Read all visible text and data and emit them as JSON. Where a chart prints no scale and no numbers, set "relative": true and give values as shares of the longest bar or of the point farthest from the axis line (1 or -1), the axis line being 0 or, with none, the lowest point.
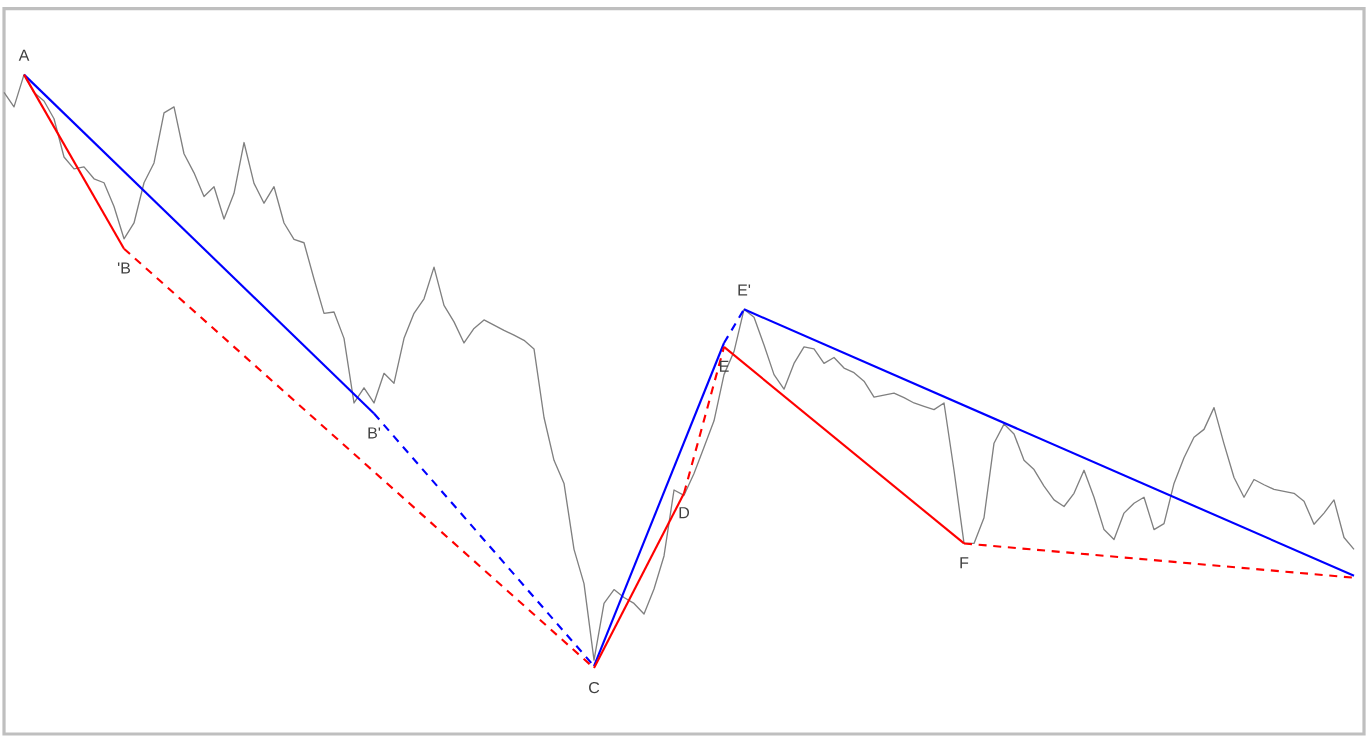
{
  "chart_data": {
    "type": "line",
    "relative": true,
    "marker": "none",
    "categories": [
      null,
      null,
      null,
      null,
      null,
      null,
      null,
      null,
      null,
      null,
      null,
      null,
      null,
      null,
      null,
      null,
      null,
      null,
      null,
      null,
      null,
      null,
      null,
      null,
      null,
      null,
      null,
      null,
      null,
      null,
      null,
      null,
      null,
      null,
      null,
      null,
      null,
      null,
      null,
      null,
      null,
      null,
      null,
      null,
      null,
      null,
      null,
      null,
      null,
      null,
      null,
      null,
      null,
      null,
      null,
      null,
      null,
      null,
      null,
      null,
      null,
      null,
      null,
      null,
      null,
      null,
      null,
      null,
      null,
      null,
      null,
      null,
      null,
      null,
      null,
      null,
      null,
      null,
      null,
      null,
      null,
      null,
      null,
      null,
      null,
      null,
      null,
      null,
      null,
      null,
      null,
      null,
      null,
      null,
      null,
      null,
      null,
      null,
      null,
      null,
      null,
      null,
      null,
      null,
      null,
      null,
      null,
      null,
      null,
      null,
      null,
      null,
      null,
      null,
      null,
      null,
      null,
      null,
      null,
      null,
      null,
      null,
      null,
      null,
      null,
      null,
      null,
      null,
      null,
      null,
      null,
      null,
      null,
      null,
      null,
      null
    ],
    "series": [
      {
        "color": "#808080",
        "line_style": "solid",
        "values": [
          0.973,
          0.951,
          1.0,
          0.973,
          0.96,
          0.933,
          0.875,
          0.857,
          0.86,
          0.842,
          0.836,
          0.8,
          0.751,
          0.775,
          0.836,
          0.866,
          0.942,
          0.951,
          0.88,
          0.851,
          0.815,
          0.83,
          0.781,
          0.82,
          0.897,
          0.835,
          0.805,
          0.83,
          0.775,
          0.75,
          0.745,
          0.69,
          0.638,
          0.64,
          0.6,
          0.502,
          0.525,
          0.502,
          0.547,
          0.532,
          0.6,
          0.638,
          0.66,
          0.708,
          0.65,
          0.625,
          0.593,
          0.615,
          0.628,
          0.62,
          0.612,
          0.605,
          0.597,
          0.584,
          0.48,
          0.415,
          0.38,
          0.28,
          0.228,
          0.112,
          0.198,
          0.219,
          0.207,
          0.198,
          0.182,
          0.22,
          0.27,
          0.37,
          0.362,
          0.395,
          0.435,
          0.475,
          0.545,
          0.58,
          0.644,
          0.632,
          0.59,
          0.545,
          0.523,
          0.562,
          0.587,
          0.584,
          0.562,
          0.571,
          0.555,
          0.548,
          0.535,
          0.511,
          0.514,
          0.517,
          0.51,
          0.502,
          0.497,
          0.492,
          0.502,
          0.4,
          0.289,
          0.289,
          0.328,
          0.441,
          0.47,
          0.455,
          0.415,
          0.401,
          0.376,
          0.355,
          0.345,
          0.365,
          0.4,
          0.359,
          0.31,
          0.295,
          0.335,
          0.35,
          0.359,
          0.31,
          0.319,
          0.38,
          0.419,
          0.45,
          0.462,
          0.495,
          0.44,
          0.389,
          0.359,
          0.386,
          0.378,
          0.371,
          0.368,
          0.365,
          0.353,
          0.318,
          0.335,
          0.355,
          0.298,
          0.28
        ]
      },
      {
        "color": "#0000ff",
        "line_style": "solid",
        "values": [
          null,
          null,
          1.0,
          null,
          null,
          null,
          null,
          null,
          null,
          null,
          null,
          null,
          null,
          null,
          null,
          null,
          null,
          null,
          null,
          null,
          null,
          null,
          null,
          null,
          null,
          null,
          null,
          null,
          null,
          null,
          null,
          null,
          null,
          null,
          null,
          null,
          null,
          0.486,
          null,
          null,
          null,
          null,
          null,
          null,
          null,
          null,
          null,
          null,
          null,
          null,
          null,
          null,
          null,
          null,
          null,
          null,
          null,
          null,
          null,
          null,
          null,
          null,
          null,
          null,
          null,
          null,
          null,
          null,
          null,
          null,
          null,
          null,
          null,
          null,
          null,
          null,
          null,
          null,
          null,
          null,
          null,
          null,
          null,
          null,
          null,
          null,
          null,
          null,
          null,
          null,
          null,
          null,
          null,
          null,
          null,
          null,
          null,
          null,
          null,
          null,
          null,
          null,
          null,
          null,
          null,
          null,
          null,
          null,
          null,
          null,
          null,
          null,
          null,
          null,
          null,
          null,
          null,
          null,
          null,
          null,
          null,
          null,
          null,
          null,
          null,
          null,
          null,
          null,
          null,
          null,
          null,
          null,
          null,
          null,
          null,
          null
        ]
      },
      {
        "color": "#0000ff",
        "line_style": "dashed",
        "values": [
          null,
          null,
          null,
          null,
          null,
          null,
          null,
          null,
          null,
          null,
          null,
          null,
          null,
          null,
          null,
          null,
          null,
          null,
          null,
          null,
          null,
          null,
          null,
          null,
          null,
          null,
          null,
          null,
          null,
          null,
          null,
          null,
          null,
          null,
          null,
          null,
          null,
          0.486,
          null,
          null,
          null,
          null,
          null,
          null,
          null,
          null,
          null,
          null,
          null,
          null,
          null,
          null,
          null,
          null,
          null,
          null,
          null,
          null,
          null,
          0.103,
          null,
          null,
          null,
          null,
          null,
          null,
          null,
          null,
          null,
          null,
          null,
          null,
          null,
          null,
          null,
          null,
          null,
          null,
          null,
          null,
          null,
          null,
          null,
          null,
          null,
          null,
          null,
          null,
          null,
          null,
          null,
          null,
          null,
          null,
          null,
          null,
          null,
          null,
          null,
          null,
          null,
          null,
          null,
          null,
          null,
          null,
          null,
          null,
          null,
          null,
          null,
          null,
          null,
          null,
          null,
          null,
          null,
          null,
          null,
          null,
          null,
          null,
          null,
          null,
          null,
          null,
          null,
          null,
          null,
          null,
          null,
          null,
          null,
          null,
          null,
          null
        ]
      },
      {
        "color": "#0000ff",
        "line_style": "solid",
        "values": [
          null,
          null,
          null,
          null,
          null,
          null,
          null,
          null,
          null,
          null,
          null,
          null,
          null,
          null,
          null,
          null,
          null,
          null,
          null,
          null,
          null,
          null,
          null,
          null,
          null,
          null,
          null,
          null,
          null,
          null,
          null,
          null,
          null,
          null,
          null,
          null,
          null,
          null,
          null,
          null,
          null,
          null,
          null,
          null,
          null,
          null,
          null,
          null,
          null,
          null,
          null,
          null,
          null,
          null,
          null,
          null,
          null,
          null,
          null,
          0.103,
          null,
          null,
          null,
          null,
          null,
          null,
          null,
          null,
          null,
          null,
          null,
          null,
          0.593,
          null,
          null,
          null,
          null,
          null,
          null,
          null,
          null,
          null,
          null,
          null,
          null,
          null,
          null,
          null,
          null,
          null,
          null,
          null,
          null,
          null,
          null,
          null,
          null,
          null,
          null,
          null,
          null,
          null,
          null,
          null,
          null,
          null,
          null,
          null,
          null,
          null,
          null,
          null,
          null,
          null,
          null,
          null,
          null,
          null,
          null,
          null,
          null,
          null,
          null,
          null,
          null,
          null,
          null,
          null,
          null,
          null,
          null,
          null,
          null,
          null,
          null,
          null
        ]
      },
      {
        "color": "#0000ff",
        "line_style": "dashed",
        "values": [
          null,
          null,
          null,
          null,
          null,
          null,
          null,
          null,
          null,
          null,
          null,
          null,
          null,
          null,
          null,
          null,
          null,
          null,
          null,
          null,
          null,
          null,
          null,
          null,
          null,
          null,
          null,
          null,
          null,
          null,
          null,
          null,
          null,
          null,
          null,
          null,
          null,
          null,
          null,
          null,
          null,
          null,
          null,
          null,
          null,
          null,
          null,
          null,
          null,
          null,
          null,
          null,
          null,
          null,
          null,
          null,
          null,
          null,
          null,
          null,
          null,
          null,
          null,
          null,
          null,
          null,
          null,
          null,
          null,
          null,
          null,
          null,
          0.593,
          null,
          0.644,
          null,
          null,
          null,
          null,
          null,
          null,
          null,
          null,
          null,
          null,
          null,
          null,
          null,
          null,
          null,
          null,
          null,
          null,
          null,
          null,
          null,
          null,
          null,
          null,
          null,
          null,
          null,
          null,
          null,
          null,
          null,
          null,
          null,
          null,
          null,
          null,
          null,
          null,
          null,
          null,
          null,
          null,
          null,
          null,
          null,
          null,
          null,
          null,
          null,
          null,
          null,
          null,
          null,
          null,
          null,
          null,
          null,
          null,
          null,
          null,
          null
        ]
      },
      {
        "color": "#0000ff",
        "line_style": "solid",
        "values": [
          null,
          null,
          null,
          null,
          null,
          null,
          null,
          null,
          null,
          null,
          null,
          null,
          null,
          null,
          null,
          null,
          null,
          null,
          null,
          null,
          null,
          null,
          null,
          null,
          null,
          null,
          null,
          null,
          null,
          null,
          null,
          null,
          null,
          null,
          null,
          null,
          null,
          null,
          null,
          null,
          null,
          null,
          null,
          null,
          null,
          null,
          null,
          null,
          null,
          null,
          null,
          null,
          null,
          null,
          null,
          null,
          null,
          null,
          null,
          null,
          null,
          null,
          null,
          null,
          null,
          null,
          null,
          null,
          null,
          null,
          null,
          null,
          null,
          null,
          0.644,
          null,
          null,
          null,
          null,
          null,
          null,
          null,
          null,
          null,
          null,
          null,
          null,
          null,
          null,
          null,
          null,
          null,
          null,
          null,
          null,
          null,
          null,
          null,
          null,
          null,
          null,
          null,
          null,
          null,
          null,
          null,
          null,
          null,
          null,
          null,
          null,
          null,
          null,
          null,
          null,
          null,
          null,
          null,
          null,
          null,
          null,
          null,
          null,
          null,
          null,
          null,
          null,
          null,
          null,
          null,
          null,
          null,
          null,
          null,
          null,
          0.24
        ]
      },
      {
        "color": "#ff0000",
        "line_style": "solid",
        "values": [
          null,
          null,
          1.0,
          null,
          null,
          null,
          null,
          null,
          null,
          null,
          null,
          null,
          0.736,
          null,
          null,
          null,
          null,
          null,
          null,
          null,
          null,
          null,
          null,
          null,
          null,
          null,
          null,
          null,
          null,
          null,
          null,
          null,
          null,
          null,
          null,
          null,
          null,
          null,
          null,
          null,
          null,
          null,
          null,
          null,
          null,
          null,
          null,
          null,
          null,
          null,
          null,
          null,
          null,
          null,
          null,
          null,
          null,
          null,
          null,
          null,
          null,
          null,
          null,
          null,
          null,
          null,
          null,
          null,
          null,
          null,
          null,
          null,
          null,
          null,
          null,
          null,
          null,
          null,
          null,
          null,
          null,
          null,
          null,
          null,
          null,
          null,
          null,
          null,
          null,
          null,
          null,
          null,
          null,
          null,
          null,
          null,
          null,
          null,
          null,
          null,
          null,
          null,
          null,
          null,
          null,
          null,
          null,
          null,
          null,
          null,
          null,
          null,
          null,
          null,
          null,
          null,
          null,
          null,
          null,
          null,
          null,
          null,
          null,
          null,
          null,
          null,
          null,
          null,
          null,
          null,
          null,
          null,
          null,
          null,
          null,
          null
        ]
      },
      {
        "color": "#ff0000",
        "line_style": "dashed",
        "values": [
          null,
          null,
          null,
          null,
          null,
          null,
          null,
          null,
          null,
          null,
          null,
          null,
          0.736,
          null,
          null,
          null,
          null,
          null,
          null,
          null,
          null,
          null,
          null,
          null,
          null,
          null,
          null,
          null,
          null,
          null,
          null,
          null,
          null,
          null,
          null,
          null,
          null,
          null,
          null,
          null,
          null,
          null,
          null,
          null,
          null,
          null,
          null,
          null,
          null,
          null,
          null,
          null,
          null,
          null,
          null,
          null,
          null,
          null,
          null,
          0.1,
          null,
          null,
          null,
          null,
          null,
          null,
          null,
          null,
          null,
          null,
          null,
          null,
          null,
          null,
          null,
          null,
          null,
          null,
          null,
          null,
          null,
          null,
          null,
          null,
          null,
          null,
          null,
          null,
          null,
          null,
          null,
          null,
          null,
          null,
          null,
          null,
          null,
          null,
          null,
          null,
          null,
          null,
          null,
          null,
          null,
          null,
          null,
          null,
          null,
          null,
          null,
          null,
          null,
          null,
          null,
          null,
          null,
          null,
          null,
          null,
          null,
          null,
          null,
          null,
          null,
          null,
          null,
          null,
          null,
          null,
          null,
          null,
          null,
          null,
          null,
          null
        ]
      },
      {
        "color": "#ff0000",
        "line_style": "solid",
        "values": [
          null,
          null,
          null,
          null,
          null,
          null,
          null,
          null,
          null,
          null,
          null,
          null,
          null,
          null,
          null,
          null,
          null,
          null,
          null,
          null,
          null,
          null,
          null,
          null,
          null,
          null,
          null,
          null,
          null,
          null,
          null,
          null,
          null,
          null,
          null,
          null,
          null,
          null,
          null,
          null,
          null,
          null,
          null,
          null,
          null,
          null,
          null,
          null,
          null,
          null,
          null,
          null,
          null,
          null,
          null,
          null,
          null,
          null,
          null,
          0.1,
          null,
          null,
          null,
          null,
          null,
          null,
          null,
          null,
          0.365,
          null,
          null,
          null,
          null,
          null,
          null,
          null,
          null,
          null,
          null,
          null,
          null,
          null,
          null,
          null,
          null,
          null,
          null,
          null,
          null,
          null,
          null,
          null,
          null,
          null,
          null,
          null,
          null,
          null,
          null,
          null,
          null,
          null,
          null,
          null,
          null,
          null,
          null,
          null,
          null,
          null,
          null,
          null,
          null,
          null,
          null,
          null,
          null,
          null,
          null,
          null,
          null,
          null,
          null,
          null,
          null,
          null,
          null,
          null,
          null,
          null,
          null,
          null,
          null,
          null,
          null,
          null
        ]
      },
      {
        "color": "#ff0000",
        "line_style": "dashed",
        "values": [
          null,
          null,
          null,
          null,
          null,
          null,
          null,
          null,
          null,
          null,
          null,
          null,
          null,
          null,
          null,
          null,
          null,
          null,
          null,
          null,
          null,
          null,
          null,
          null,
          null,
          null,
          null,
          null,
          null,
          null,
          null,
          null,
          null,
          null,
          null,
          null,
          null,
          null,
          null,
          null,
          null,
          null,
          null,
          null,
          null,
          null,
          null,
          null,
          null,
          null,
          null,
          null,
          null,
          null,
          null,
          null,
          null,
          null,
          null,
          null,
          null,
          null,
          null,
          null,
          null,
          null,
          null,
          null,
          0.365,
          null,
          null,
          null,
          0.587,
          null,
          null,
          null,
          null,
          null,
          null,
          null,
          null,
          null,
          null,
          null,
          null,
          null,
          null,
          null,
          null,
          null,
          null,
          null,
          null,
          null,
          null,
          null,
          null,
          null,
          null,
          null,
          null,
          null,
          null,
          null,
          null,
          null,
          null,
          null,
          null,
          null,
          null,
          null,
          null,
          null,
          null,
          null,
          null,
          null,
          null,
          null,
          null,
          null,
          null,
          null,
          null,
          null,
          null,
          null,
          null,
          null,
          null,
          null,
          null,
          null,
          null,
          null
        ]
      },
      {
        "color": "#ff0000",
        "line_style": "solid",
        "values": [
          null,
          null,
          null,
          null,
          null,
          null,
          null,
          null,
          null,
          null,
          null,
          null,
          null,
          null,
          null,
          null,
          null,
          null,
          null,
          null,
          null,
          null,
          null,
          null,
          null,
          null,
          null,
          null,
          null,
          null,
          null,
          null,
          null,
          null,
          null,
          null,
          null,
          null,
          null,
          null,
          null,
          null,
          null,
          null,
          null,
          null,
          null,
          null,
          null,
          null,
          null,
          null,
          null,
          null,
          null,
          null,
          null,
          null,
          null,
          null,
          null,
          null,
          null,
          null,
          null,
          null,
          null,
          null,
          null,
          null,
          null,
          null,
          0.587,
          null,
          null,
          null,
          null,
          null,
          null,
          null,
          null,
          null,
          null,
          null,
          null,
          null,
          null,
          null,
          null,
          null,
          null,
          null,
          null,
          null,
          null,
          null,
          0.289,
          null,
          null,
          null,
          null,
          null,
          null,
          null,
          null,
          null,
          null,
          null,
          null,
          null,
          null,
          null,
          null,
          null,
          null,
          null,
          null,
          null,
          null,
          null,
          null,
          null,
          null,
          null,
          null,
          null,
          null,
          null,
          null,
          null,
          null,
          null,
          null,
          null,
          null,
          null
        ]
      },
      {
        "color": "#ff0000",
        "line_style": "dashed",
        "values": [
          null,
          null,
          null,
          null,
          null,
          null,
          null,
          null,
          null,
          null,
          null,
          null,
          null,
          null,
          null,
          null,
          null,
          null,
          null,
          null,
          null,
          null,
          null,
          null,
          null,
          null,
          null,
          null,
          null,
          null,
          null,
          null,
          null,
          null,
          null,
          null,
          null,
          null,
          null,
          null,
          null,
          null,
          null,
          null,
          null,
          null,
          null,
          null,
          null,
          null,
          null,
          null,
          null,
          null,
          null,
          null,
          null,
          null,
          null,
          null,
          null,
          null,
          null,
          null,
          null,
          null,
          null,
          null,
          null,
          null,
          null,
          null,
          null,
          null,
          null,
          null,
          null,
          null,
          null,
          null,
          null,
          null,
          null,
          null,
          null,
          null,
          null,
          null,
          null,
          null,
          null,
          null,
          null,
          null,
          null,
          null,
          0.289,
          null,
          null,
          null,
          null,
          null,
          null,
          null,
          null,
          null,
          null,
          null,
          null,
          null,
          null,
          null,
          null,
          null,
          null,
          null,
          null,
          null,
          null,
          null,
          null,
          null,
          null,
          null,
          null,
          null,
          null,
          null,
          null,
          null,
          null,
          null,
          null,
          null,
          null,
          0.237
        ]
      }
    ],
    "annotations": [
      "A",
      "'B",
      "B'",
      "C",
      "D",
      "E",
      "E'",
      "F"
    ]
  }
}
